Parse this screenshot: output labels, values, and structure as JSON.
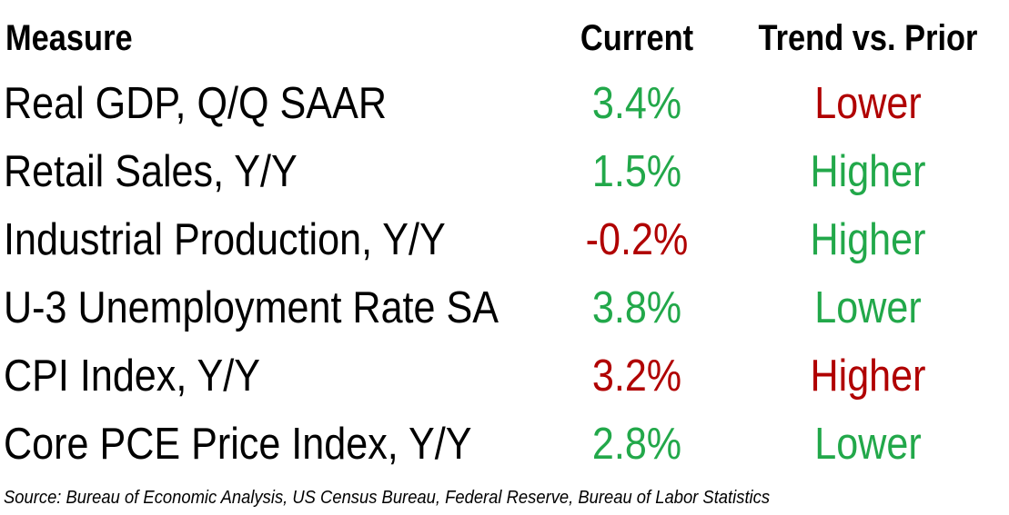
{
  "chart_data": {
    "type": "table",
    "columns": [
      "Measure",
      "Current",
      "Trend vs. Prior"
    ],
    "rows": [
      {
        "measure": "Real GDP, Q/Q SAAR",
        "current": "3.4%",
        "trend": "Lower",
        "current_color": "#22a84a",
        "trend_color": "#b00000"
      },
      {
        "measure": "Retail Sales, Y/Y",
        "current": "1.5%",
        "trend": "Higher",
        "current_color": "#22a84a",
        "trend_color": "#22a84a"
      },
      {
        "measure": "Industrial Production, Y/Y",
        "current": "-0.2%",
        "trend": "Higher",
        "current_color": "#b00000",
        "trend_color": "#22a84a"
      },
      {
        "measure": "U-3 Unemployment Rate SA",
        "current": "3.8%",
        "trend": "Lower",
        "current_color": "#22a84a",
        "trend_color": "#22a84a"
      },
      {
        "measure": "CPI Index, Y/Y",
        "current": "3.2%",
        "trend": "Higher",
        "current_color": "#b00000",
        "trend_color": "#b00000"
      },
      {
        "measure": "Core PCE Price Index, Y/Y",
        "current": "2.8%",
        "trend": "Lower",
        "current_color": "#22a84a",
        "trend_color": "#22a84a"
      }
    ],
    "source": "Source: Bureau of Economic Analysis, US Census Bureau, Federal Reserve, Bureau of Labor Statistics"
  }
}
